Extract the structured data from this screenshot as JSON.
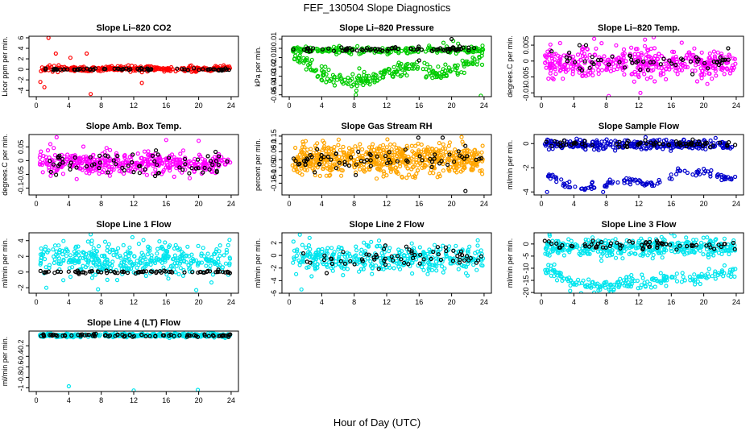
{
  "figure": {
    "title": "FEF_130504  Slope Diagnostics",
    "xlabel": "Hour of Day (UTC)"
  },
  "chart_data": [
    {
      "type": "scatter",
      "title": "Slope Li–820 CO2",
      "ylabel": "Licor ppm per min.",
      "xlim": [
        -0.9,
        24.9
      ],
      "ylim": [
        -5.2,
        6.3
      ],
      "xticks": [
        0,
        4,
        8,
        12,
        16,
        20,
        24
      ],
      "yticks": [
        -4,
        -2,
        0,
        2,
        4,
        6
      ],
      "series": [
        {
          "color": "#ff0000",
          "model": "band",
          "center": 0.1,
          "spread": 0.45,
          "n": 300,
          "outliers": [
            [
              1.5,
              6.0
            ],
            [
              1.0,
              -3.4
            ],
            [
              6.7,
              -4.7
            ],
            [
              2.4,
              3.0
            ],
            [
              6.2,
              3.0
            ],
            [
              0.5,
              -2.4
            ],
            [
              13.0,
              -2.6
            ],
            [
              4.2,
              2.2
            ]
          ]
        },
        {
          "color": "#000000",
          "model": "band",
          "center": 0.0,
          "spread": 0.2,
          "n": 70
        }
      ]
    },
    {
      "type": "scatter",
      "title": "Slope Li–820 Pressure",
      "ylabel": "kPa per min.",
      "xlim": [
        -0.9,
        24.9
      ],
      "ylim": [
        -0.052,
        0.013
      ],
      "xticks": [
        0,
        4,
        8,
        12,
        16,
        20,
        24
      ],
      "yticks": [
        -0.05,
        -0.04,
        -0.03,
        -0.02,
        -0.01,
        0.0,
        0.01
      ],
      "series": [
        {
          "color": "#00cc00",
          "model": "band",
          "center": -0.002,
          "spread": 0.003,
          "n": 220
        },
        {
          "color": "#00cc00",
          "model": "curve",
          "curve": [
            [
              1,
              -0.01
            ],
            [
              3,
              -0.022
            ],
            [
              5,
              -0.03
            ],
            [
              7,
              -0.035
            ],
            [
              9,
              -0.036
            ],
            [
              11,
              -0.031
            ],
            [
              13,
              -0.026
            ],
            [
              15,
              -0.021
            ],
            [
              16,
              -0.021
            ],
            [
              17,
              -0.025
            ],
            [
              19,
              -0.028
            ],
            [
              21,
              -0.02
            ],
            [
              23,
              -0.012
            ],
            [
              24,
              -0.01
            ]
          ],
          "spread": 0.007,
          "n": 230,
          "outliers": [
            [
              8.2,
              -0.05
            ],
            [
              23.6,
              -0.051
            ],
            [
              20.2,
              0.008
            ],
            [
              19.0,
              0.006
            ],
            [
              20.8,
              0.005
            ]
          ]
        },
        {
          "color": "#000000",
          "model": "band",
          "center": -0.001,
          "spread": 0.0025,
          "n": 75,
          "outliers": [
            [
              20.0,
              0.01
            ],
            [
              21.0,
              0.002
            ],
            [
              16.0,
              -0.013
            ]
          ]
        }
      ]
    },
    {
      "type": "scatter",
      "title": "Slope Li–820 Temp.",
      "ylabel": "degrees.C per min.",
      "xlim": [
        -0.9,
        24.9
      ],
      "ylim": [
        -0.0112,
        0.0078
      ],
      "xticks": [
        0,
        4,
        8,
        12,
        16,
        20,
        24
      ],
      "yticks": [
        -0.01,
        -0.005,
        0.0,
        0.005
      ],
      "series": [
        {
          "color": "#ff00ff",
          "model": "band",
          "center": -0.0005,
          "spread": 0.0042,
          "n": 420,
          "outliers": [
            [
              6.5,
              0.007
            ],
            [
              8.3,
              -0.011
            ],
            [
              12.2,
              -0.01
            ]
          ]
        },
        {
          "color": "#000000",
          "model": "band",
          "center": -0.0002,
          "spread": 0.0025,
          "n": 55,
          "outliers": [
            [
              4.7,
              0.005
            ],
            [
              5.5,
              0.005
            ],
            [
              23.0,
              0.004
            ]
          ]
        }
      ]
    },
    {
      "type": "scatter",
      "title": "Slope Amb. Box Temp.",
      "ylabel": "degrees.C per min.",
      "xlim": [
        -0.9,
        24.9
      ],
      "ylim": [
        -0.125,
        0.095
      ],
      "xticks": [
        0,
        4,
        8,
        12,
        16,
        20,
        24
      ],
      "yticks": [
        -0.1,
        -0.05,
        0.0,
        0.05
      ],
      "series": [
        {
          "color": "#ff00ff",
          "model": "band",
          "center": -0.01,
          "spread": 0.038,
          "n": 430,
          "outliers": [
            [
              2.5,
              0.085
            ],
            [
              16.0,
              0.075
            ],
            [
              20.0,
              0.072
            ]
          ]
        },
        {
          "color": "#000000",
          "model": "band",
          "center": -0.015,
          "spread": 0.04,
          "n": 70
        }
      ]
    },
    {
      "type": "scatter",
      "title": "Slope Gas Stream RH",
      "ylabel": "percent per min.",
      "xlim": [
        -0.9,
        24.9
      ],
      "ylim": [
        -0.225,
        0.16
      ],
      "xticks": [
        0,
        4,
        8,
        12,
        16,
        20,
        24
      ],
      "yticks": [
        -0.15,
        -0.1,
        -0.05,
        0.0,
        0.05,
        0.1,
        0.15
      ],
      "series": [
        {
          "color": "#ffa500",
          "model": "band",
          "center": 0.0,
          "spread": 0.085,
          "n": 650
        },
        {
          "color": "#000000",
          "model": "band",
          "center": 0.0,
          "spread": 0.06,
          "n": 70,
          "outliers": [
            [
              15.9,
              0.14
            ],
            [
              18.9,
              0.14
            ],
            [
              21.7,
              -0.2
            ]
          ]
        }
      ]
    },
    {
      "type": "scatter",
      "title": "Slope Sample Flow",
      "ylabel": "ml/min per min.",
      "xlim": [
        -0.9,
        24.9
      ],
      "ylim": [
        -4.25,
        0.75
      ],
      "xticks": [
        0,
        4,
        8,
        12,
        16,
        20,
        24
      ],
      "yticks": [
        -4,
        -2,
        0
      ],
      "series": [
        {
          "color": "#0000cc",
          "model": "band",
          "center": -0.1,
          "spread": 0.35,
          "n": 320
        },
        {
          "color": "#0000cc",
          "model": "curve",
          "curve": [
            [
              1.5,
              -2.8
            ],
            [
              3,
              -3.4
            ],
            [
              4.5,
              -3.7
            ],
            [
              6,
              -3.6
            ],
            [
              8,
              -3.4
            ],
            [
              10,
              -3.1
            ],
            [
              12,
              -3.1
            ],
            [
              13,
              -3.4
            ],
            [
              15,
              -3.0
            ],
            [
              17,
              -2.2
            ],
            [
              19,
              -2.5
            ],
            [
              20,
              -2.2
            ],
            [
              22,
              -2.7
            ],
            [
              24,
              -2.9
            ]
          ],
          "spread": 0.25,
          "n": 120,
          "outliers": [
            [
              0.7,
              -4.0
            ],
            [
              7.6,
              -4.0
            ]
          ]
        },
        {
          "color": "#000000",
          "model": "band",
          "center": 0.0,
          "spread": 0.25,
          "n": 70
        }
      ]
    },
    {
      "type": "scatter",
      "title": "Slope Line 1 Flow",
      "ylabel": "ml/min per min.",
      "xlim": [
        -0.9,
        24.9
      ],
      "ylim": [
        -2.7,
        5.0
      ],
      "xticks": [
        0,
        4,
        8,
        12,
        16,
        20,
        24
      ],
      "yticks": [
        -2,
        0,
        2,
        4
      ],
      "series": [
        {
          "color": "#00e5ee",
          "model": "band",
          "center": 1.6,
          "spread": 1.9,
          "n": 400,
          "outliers": [
            [
              7.6,
              -2.2
            ],
            [
              19.7,
              -2.3
            ],
            [
              6.7,
              4.8
            ]
          ]
        },
        {
          "color": "#000000",
          "model": "band",
          "center": 0.0,
          "spread": 0.15,
          "n": 75
        }
      ]
    },
    {
      "type": "scatter",
      "title": "Slope Line 2 Flow",
      "ylabel": "ml/min per min.",
      "xlim": [
        -0.9,
        24.9
      ],
      "ylim": [
        -6.0,
        3.6
      ],
      "xticks": [
        0,
        4,
        8,
        12,
        16,
        20,
        24
      ],
      "yticks": [
        -6,
        -4,
        -2,
        0,
        2
      ],
      "series": [
        {
          "color": "#00e5ee",
          "model": "band",
          "center": -0.5,
          "spread": 1.9,
          "n": 380,
          "outliers": [
            [
              1.5,
              -5.4
            ],
            [
              1.3,
              3.3
            ],
            [
              2.5,
              2.8
            ]
          ]
        },
        {
          "color": "#000000",
          "model": "band",
          "center": -0.2,
          "spread": 1.5,
          "n": 65
        }
      ]
    },
    {
      "type": "scatter",
      "title": "Slope Line 3 Flow",
      "ylabel": "ml/min per min.",
      "xlim": [
        -0.9,
        24.9
      ],
      "ylim": [
        -20.3,
        4.6
      ],
      "xticks": [
        0,
        4,
        8,
        12,
        16,
        20,
        24
      ],
      "yticks": [
        -20,
        -15,
        -10,
        -5,
        0
      ],
      "series": [
        {
          "color": "#00e5ee",
          "model": "band",
          "center": -1.5,
          "spread": 3.2,
          "n": 380
        },
        {
          "color": "#00e5ee",
          "model": "curve",
          "curve": [
            [
              1,
              -10
            ],
            [
              3,
              -14
            ],
            [
              5,
              -17
            ],
            [
              7,
              -17.5
            ],
            [
              9,
              -17
            ],
            [
              11,
              -16
            ],
            [
              13,
              -15.5
            ],
            [
              15,
              -15
            ],
            [
              17,
              -14.5
            ],
            [
              19,
              -14
            ],
            [
              21,
              -13
            ],
            [
              23,
              -12
            ],
            [
              24,
              -11.5
            ]
          ],
          "spread": 2.5,
          "n": 200,
          "outliers": [
            [
              6.5,
              -20.0
            ],
            [
              1.0,
              4.0
            ],
            [
              16.0,
              4.4
            ]
          ]
        },
        {
          "color": "#000000",
          "model": "band",
          "center": -0.5,
          "spread": 1.8,
          "n": 65
        }
      ]
    },
    {
      "type": "scatter",
      "title": "Slope Line 4 (LT) Flow",
      "ylabel": "ml/min per min.",
      "xlim": [
        -0.9,
        24.9
      ],
      "ylim": [
        -1.07,
        0.08
      ],
      "xticks": [
        0,
        4,
        8,
        12,
        16,
        20,
        24
      ],
      "yticks": [
        -1.0,
        -0.8,
        -0.6,
        -0.4,
        -0.2
      ],
      "series": [
        {
          "color": "#00e5ee",
          "model": "band",
          "center": 0.0,
          "spread": 0.03,
          "n": 450,
          "outliers": [
            [
              4.0,
              -0.97
            ],
            [
              12.0,
              -1.05
            ],
            [
              19.9,
              -1.04
            ]
          ]
        },
        {
          "color": "#000000",
          "model": "band",
          "center": -0.005,
          "spread": 0.025,
          "n": 75
        }
      ]
    }
  ]
}
